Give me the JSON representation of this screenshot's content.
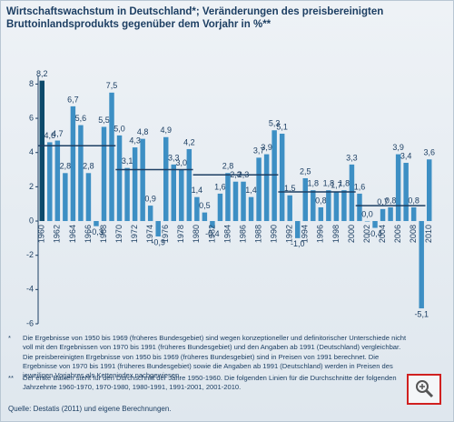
{
  "chart_data": {
    "type": "bar",
    "title": "Wirtschaftswachstum in Deutschland*; Veränderungen des preisbereinigten Bruttoinlandsprodukts gegenüber dem Vorjahr in %**",
    "categories": [
      "1960",
      null,
      "1962",
      null,
      "1964",
      null,
      "1966",
      null,
      "1968",
      null,
      "1970",
      null,
      "1972",
      null,
      "1974",
      null,
      "1976",
      null,
      "1978",
      null,
      "1980",
      null,
      "1982",
      null,
      "1984",
      null,
      "1986",
      null,
      "1988",
      null,
      "1990",
      null,
      "1992",
      null,
      "1994",
      null,
      "1996",
      null,
      "1998",
      null,
      "2000",
      null,
      "2002",
      null,
      "2004",
      null,
      "2006",
      null,
      "2008",
      null,
      "2010"
    ],
    "values": [
      8.2,
      4.6,
      4.7,
      2.8,
      6.7,
      5.6,
      2.8,
      -0.3,
      5.5,
      7.5,
      5.0,
      3.1,
      4.3,
      4.8,
      0.9,
      -0.9,
      4.9,
      3.3,
      3.0,
      4.2,
      1.4,
      0.5,
      -0.4,
      1.6,
      2.8,
      2.3,
      2.3,
      1.4,
      3.7,
      3.9,
      5.3,
      5.1,
      1.5,
      -1.0,
      2.5,
      1.8,
      0.8,
      1.8,
      1.7,
      1.8,
      3.3,
      1.6,
      0.0,
      -0.4,
      0.7,
      0.8,
      3.9,
      3.4,
      0.8,
      -5.1,
      3.6
    ],
    "value_labels": [
      "8,2",
      "4,6",
      "4,7",
      "2,8",
      "6,7",
      "5,6",
      "2,8",
      "-0,3",
      "5,5",
      "7,5",
      "5,0",
      "3,1",
      "4,3",
      "4,8",
      "0,9",
      "-0,9",
      "4,9",
      "3,3",
      "3,0",
      "4,2",
      "1,4",
      "0,5",
      "-0,4",
      "1,6",
      "2,8",
      "2,3",
      "2,3",
      "1,4",
      "3,7",
      "3,9",
      "5,3",
      "5,1",
      "1,5",
      "-1,0",
      "2,5",
      "1,8",
      "0,8",
      "1,8",
      "1,7",
      "1,8",
      "3,3",
      "1,6",
      "0,0",
      "-0,4",
      "0,7",
      "0,8",
      "3,9",
      "3,4",
      "0,8",
      "-5,1",
      "3,6"
    ],
    "color": "#3d8fc4",
    "first_color": "#0d4a6b",
    "averages": [
      {
        "start": 1960,
        "end": 1970,
        "value": 4.4
      },
      {
        "start": 1970,
        "end": 1980,
        "value": 3.0
      },
      {
        "start": 1980,
        "end": 1991,
        "value": 2.7
      },
      {
        "start": 1991,
        "end": 2001,
        "value": 1.7
      },
      {
        "start": 2001,
        "end": 2010,
        "value": 0.9
      }
    ],
    "average_color": "#1d3f63",
    "ylim": [
      -6,
      8.5
    ],
    "yticks": [
      -6,
      -4,
      -2,
      0,
      2,
      4,
      6,
      8
    ],
    "grid": false,
    "notes": [
      {
        "marker": "*",
        "text": "Die Ergebnisse von 1950 bis 1969 (früheres Bundesgebiet) sind wegen konzeptioneller und definitorischer Unterschiede nicht voll mit den Ergebnissen von 1970 bis 1991 (früheres Bundesgebiet) und den Angaben ab 1991 (Deutschland) vergleichbar. Die preisbereinigten Ergebnisse von 1950 bis 1969 (früheres Bundesgebiet) sind in Preisen von 1991 berechnet. Die Ergebnisse von 1970 bis 1991 (früheres Bundesgebiet) sowie die Angaben ab 1991 (Deutschland) werden in Preisen des jeweiligen Vorjahres als Kettenindex nachgewiesen."
      },
      {
        "marker": "**",
        "text": "Der erste Balken steht für den Durchschnitt der Jahre 1950-1960. Die folgenden Linien für die Durchschnitte der folgenden Jahrzehnte 1960-1970, 1970-1980, 1980-1991, 1991-2001, 2001-2010."
      }
    ],
    "source": "Quelle: Destatis (2011) und eigene Berechnungen."
  }
}
